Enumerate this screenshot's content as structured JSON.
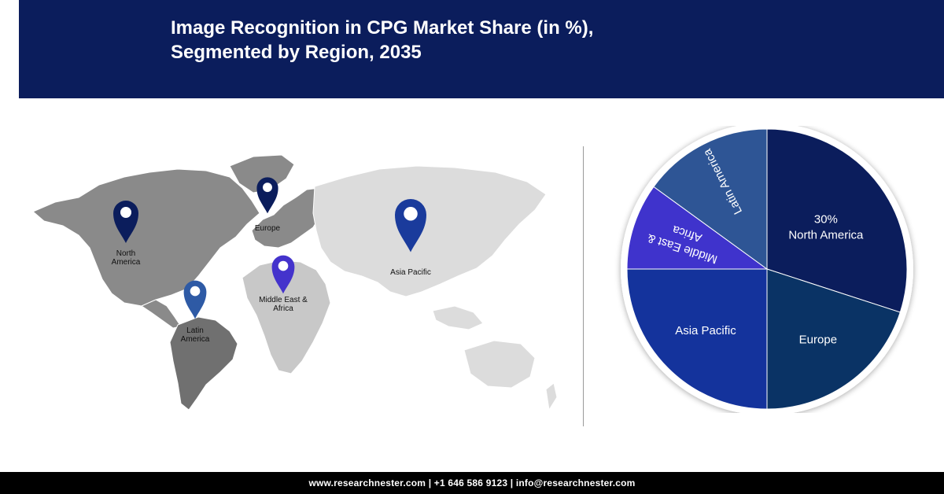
{
  "header": {
    "title_line1": "Image Recognition in CPG Market Share (in %),",
    "title_line2": "Segmented by Region, 2035"
  },
  "map": {
    "pins": [
      {
        "name": "north-america",
        "label_lines": [
          "North",
          "America"
        ],
        "color": "#0b1d5c"
      },
      {
        "name": "europe",
        "label_lines": [
          "Europe"
        ],
        "color": "#0b1d5c"
      },
      {
        "name": "asia-pacific",
        "label_lines": [
          "Asia Pacific"
        ],
        "color": "#1a3b9c"
      },
      {
        "name": "middle-east-africa",
        "label_lines": [
          "Middle East &",
          "Africa"
        ],
        "color": "#4433cc"
      },
      {
        "name": "latin-america",
        "label_lines": [
          "Latin",
          "America"
        ],
        "color": "#2e5aa5"
      }
    ],
    "land_colors": {
      "north_america": "#8a8a8a",
      "latin_america": "#707070",
      "europe": "#8a8a8a",
      "africa": "#c8c8c8",
      "asia": "#dcdcdc",
      "oceania": "#dcdcdc"
    }
  },
  "chart_data": {
    "type": "pie",
    "slices": [
      {
        "label": "North America",
        "value": 30,
        "value_label": "30%",
        "color": "#0b1d5c"
      },
      {
        "label": "Europe",
        "value": 20,
        "value_label": "",
        "color": "#0a3365"
      },
      {
        "label": "Asia Pacific",
        "value": 25,
        "value_label": "",
        "color": "#14339c"
      },
      {
        "label": "Middle East & Africa",
        "value": 10,
        "value_label": "",
        "color": "#3f33cc"
      },
      {
        "label": "Latin America",
        "value": 15,
        "value_label": "",
        "color": "#2e5595"
      }
    ]
  },
  "footer": {
    "text": "www.researchnester.com  | +1 646 586 9123 | info@researchnester.com"
  }
}
